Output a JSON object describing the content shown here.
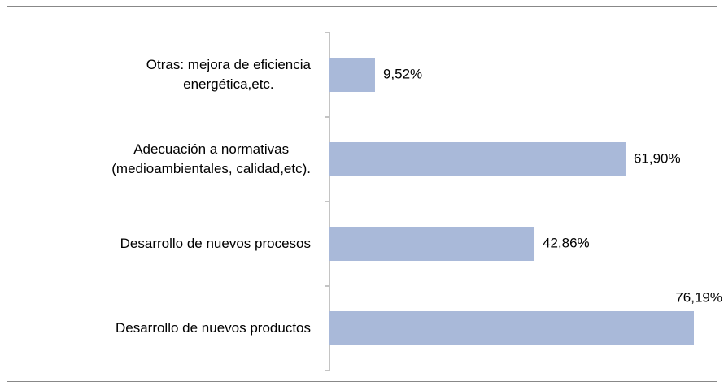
{
  "chart_data": {
    "type": "bar",
    "orientation": "horizontal",
    "categories": [
      "Otras: mejora de eficiencia\nenergética,etc.",
      "Adecuación  a normativas\n(medioambientales, calidad,etc).",
      "Desarrollo de nuevos procesos",
      "Desarrollo de nuevos productos"
    ],
    "values": [
      9.52,
      61.9,
      42.86,
      76.19
    ],
    "value_labels": [
      "9,52%",
      "61,90%",
      "42,86%",
      "76,19%"
    ],
    "color": "#a9b9d9"
  }
}
